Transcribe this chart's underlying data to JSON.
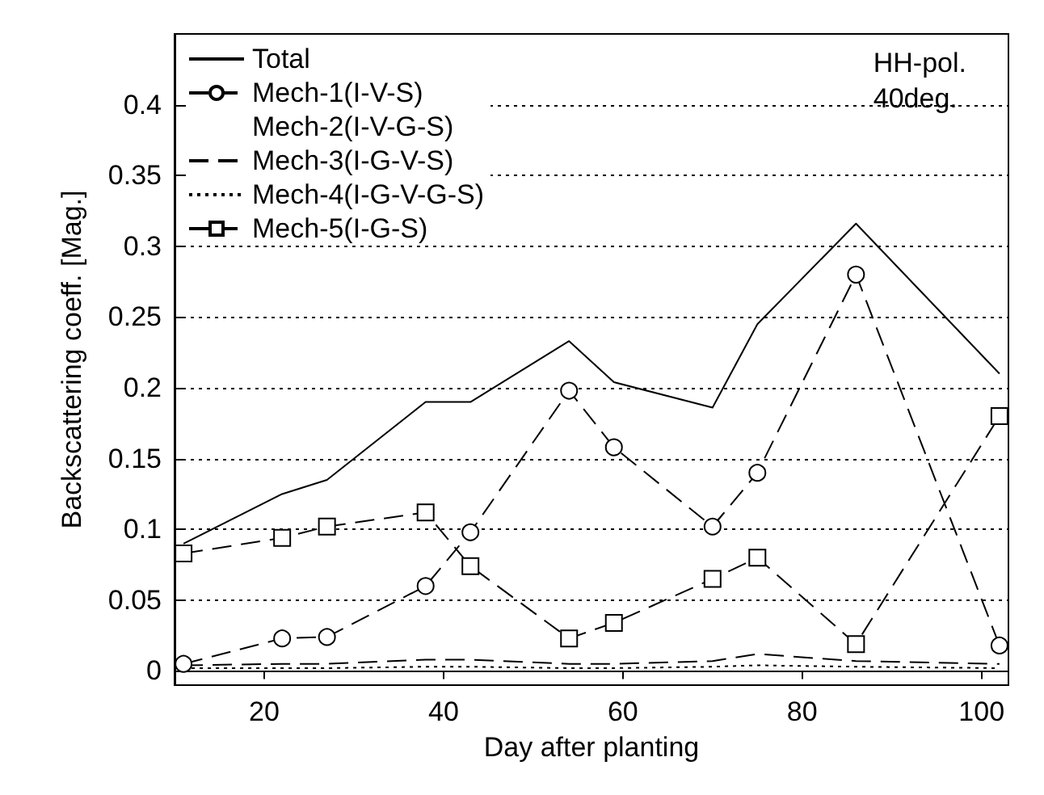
{
  "chart_data": {
    "type": "line",
    "xlabel": "Day after planting",
    "ylabel": "Backscattering coeff. [Mag.]",
    "annotations": [
      "HH-pol.\n40deg."
    ],
    "x": [
      11,
      22,
      27,
      38,
      43,
      54,
      59,
      70,
      75,
      86,
      102
    ],
    "series": [
      {
        "name": "Total",
        "color": "#000000",
        "line_style": "solid",
        "marker": "none",
        "values": [
          0.09,
          0.125,
          0.135,
          0.19,
          0.19,
          0.233,
          0.204,
          0.186,
          0.245,
          0.316,
          0.21
        ]
      },
      {
        "name": "Mech-1(I-V-S)",
        "color": "#000000",
        "line_style": "dashed",
        "marker": "circle",
        "values": [
          0.005,
          0.023,
          0.024,
          0.06,
          0.098,
          0.198,
          0.158,
          0.102,
          0.14,
          0.28,
          0.018
        ]
      },
      {
        "name": "Mech-2(I-V-G-S)",
        "color": "#000000",
        "marker": "none",
        "values": [
          null,
          null,
          null,
          null,
          null,
          null,
          null,
          null,
          null,
          null,
          null
        ]
      },
      {
        "name": "Mech-3(I-G-V-S)",
        "color": "#000000",
        "line_style": "dashed",
        "marker": "none",
        "values": [
          0.004,
          0.005,
          0.005,
          0.008,
          0.008,
          0.005,
          0.005,
          0.007,
          0.012,
          0.007,
          0.005
        ]
      },
      {
        "name": "Mech-4(I-G-V-G-S)",
        "color": "#000000",
        "line_style": "dotted",
        "marker": "none",
        "values": [
          0.002,
          0.002,
          0.002,
          0.003,
          0.003,
          0.002,
          0.002,
          0.003,
          0.004,
          0.003,
          0.002
        ]
      },
      {
        "name": "Mech-5(I-G-S)",
        "color": "#000000",
        "line_style": "dashed",
        "marker": "square",
        "values": [
          0.083,
          0.094,
          0.102,
          0.112,
          0.074,
          0.023,
          0.034,
          0.065,
          0.08,
          0.019,
          0.18
        ]
      }
    ],
    "xlim": [
      10,
      103
    ],
    "xticks": [
      20,
      40,
      60,
      80,
      100
    ],
    "ylim": [
      -0.01,
      0.45
    ],
    "yticks": [
      0,
      0.05,
      0.1,
      0.15,
      0.2,
      0.25,
      0.3,
      0.35,
      0.4
    ],
    "grid": "y",
    "legend": "top left"
  }
}
